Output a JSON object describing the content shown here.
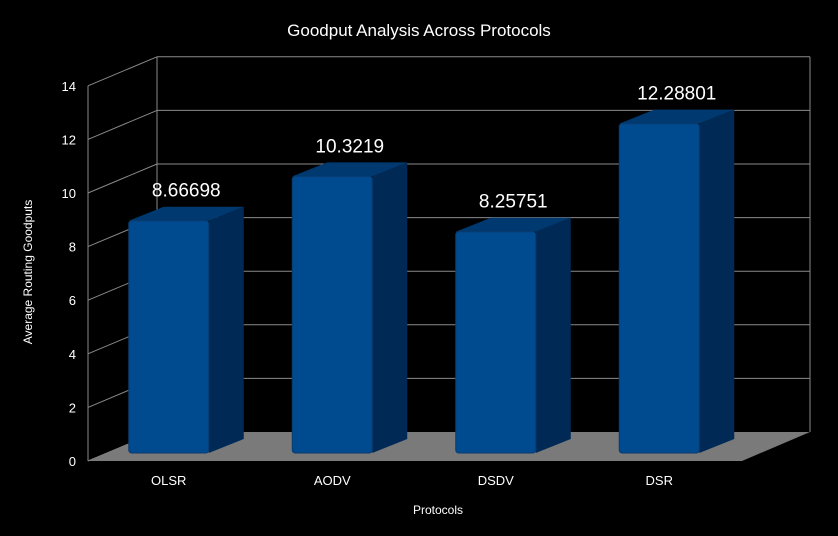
{
  "chart_data": {
    "type": "bar",
    "title": "Goodput Analysis Across Protocols",
    "xlabel": "Protocols",
    "ylabel": "Average Routing Goodputs",
    "categories": [
      "OLSR",
      "AODV",
      "DSDV",
      "DSR"
    ],
    "values": [
      8.66698,
      10.3219,
      8.25751,
      12.28801
    ],
    "data_labels": [
      "8.66698",
      "10.3219",
      "8.25751",
      "12.28801"
    ],
    "ylim": [
      0,
      14
    ],
    "yticks": [
      0,
      2,
      4,
      6,
      8,
      10,
      12,
      14
    ],
    "grid": true,
    "legend": "none",
    "style": "3d",
    "colors": {
      "background": "#000000",
      "bar_front": "#004a8f",
      "bar_side": "#002a55",
      "bar_top": "#00396f",
      "floor": "#7a7a7a",
      "grid": "#8a8a8a"
    }
  }
}
